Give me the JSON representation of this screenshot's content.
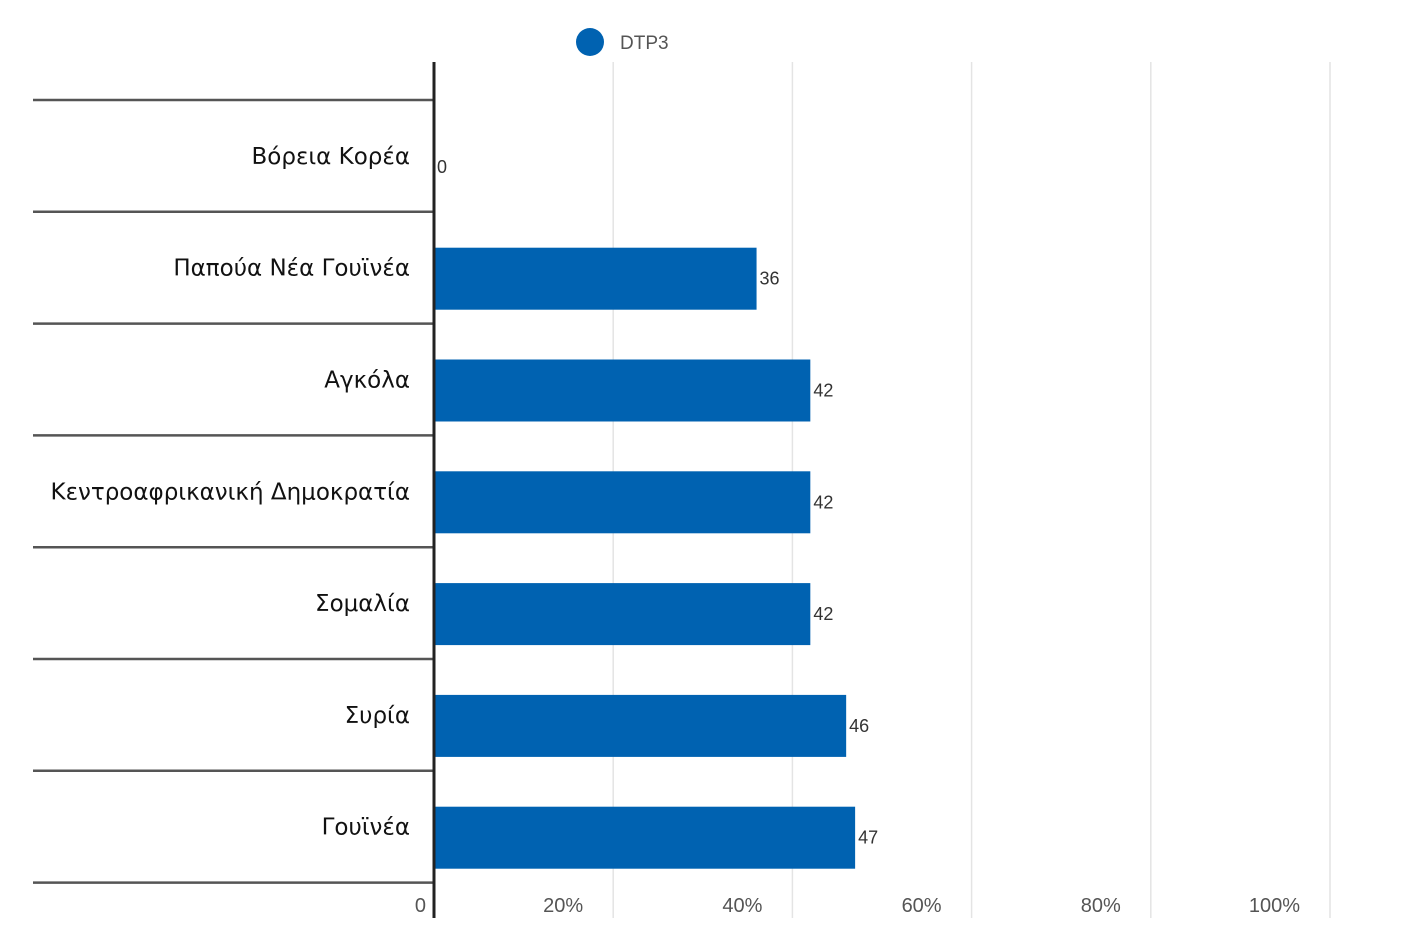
{
  "chart_data": {
    "type": "bar",
    "orientation": "horizontal",
    "categories": [
      "Βόρεια Κορέα",
      "Παπούα Νέα Γουϊνέα",
      "Αγκόλα",
      "Κεντροαφρικανική Δημοκρατία",
      "Σομαλία",
      "Συρία",
      "Γουϊνέα"
    ],
    "series": [
      {
        "name": "DTP3",
        "values": [
          0,
          36,
          42,
          42,
          42,
          46,
          47
        ],
        "color": "#0062b1"
      }
    ],
    "data_labels": [
      "0",
      "36",
      "42",
      "42",
      "42",
      "46",
      "47"
    ],
    "x_ticks": [
      {
        "value": 0,
        "label": "0"
      },
      {
        "value": 20,
        "label": "20%"
      },
      {
        "value": 40,
        "label": "40%"
      },
      {
        "value": 60,
        "label": "60%"
      },
      {
        "value": 80,
        "label": "80%"
      },
      {
        "value": 100,
        "label": "100%"
      }
    ],
    "xlim": [
      0,
      100
    ],
    "title": "",
    "xlabel": "",
    "ylabel": "",
    "grid": true,
    "legend_position": "top"
  }
}
